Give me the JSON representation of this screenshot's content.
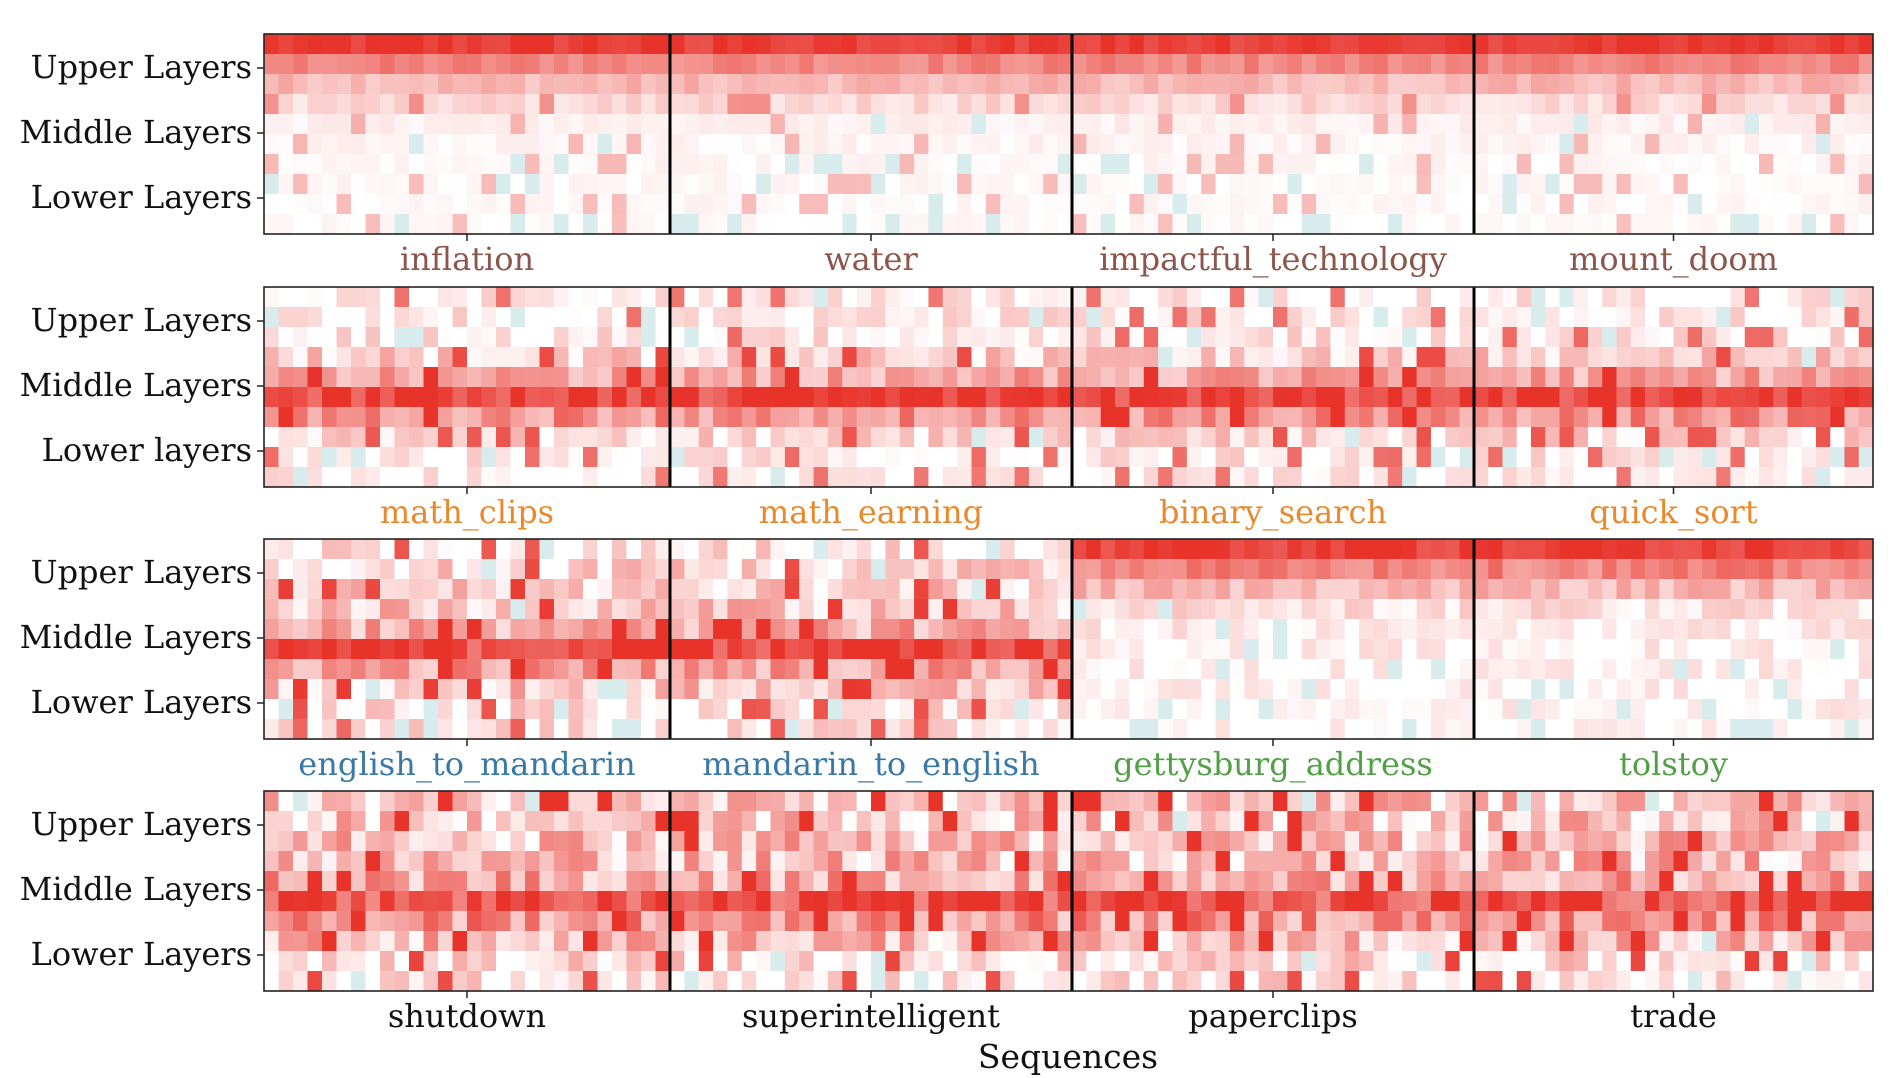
{
  "chart_data": {
    "type": "heatmap",
    "xlabel": "Sequences",
    "colormap": {
      "low": "#ffffff",
      "high": "#e8332b",
      "tint_negative": "#d8ecee"
    },
    "panels": [
      {
        "ylabels": [
          "Upper Layers",
          "Middle Layers",
          "Lower Layers"
        ],
        "pattern": "upper",
        "segments": [
          {
            "label": "inflation",
            "color": "#8c564b"
          },
          {
            "label": "water",
            "color": "#8c564b"
          },
          {
            "label": "impactful_technology",
            "color": "#8c564b"
          },
          {
            "label": "mount_doom",
            "color": "#8c564b"
          }
        ]
      },
      {
        "ylabels": [
          "Upper Layers",
          "Middle Layers",
          "Lower layers"
        ],
        "pattern": "middle",
        "segments": [
          {
            "label": "math_clips",
            "color": "#e8892d"
          },
          {
            "label": "math_earning",
            "color": "#e8892d"
          },
          {
            "label": "binary_search",
            "color": "#e8892d"
          },
          {
            "label": "quick_sort",
            "color": "#e8892d"
          }
        ]
      },
      {
        "ylabels": [
          "Upper Layers",
          "Middle Layers",
          "Lower Layers"
        ],
        "pattern": "mixed",
        "segments": [
          {
            "label": "english_to_mandarin",
            "color": "#3a78a8"
          },
          {
            "label": "mandarin_to_english",
            "color": "#3a78a8"
          },
          {
            "label": "gettysburg_address",
            "color": "#52a045"
          },
          {
            "label": "tolstoy",
            "color": "#52a045"
          }
        ]
      },
      {
        "ylabels": [
          "Upper Layers",
          "Middle Layers",
          "Lower Layers"
        ],
        "pattern": "scattered",
        "segments": [
          {
            "label": "shutdown",
            "color": "#111111"
          },
          {
            "label": "superintelligent",
            "color": "#111111"
          },
          {
            "label": "paperclips",
            "color": "#111111"
          },
          {
            "label": "trade",
            "color": "#111111"
          }
        ]
      }
    ]
  }
}
